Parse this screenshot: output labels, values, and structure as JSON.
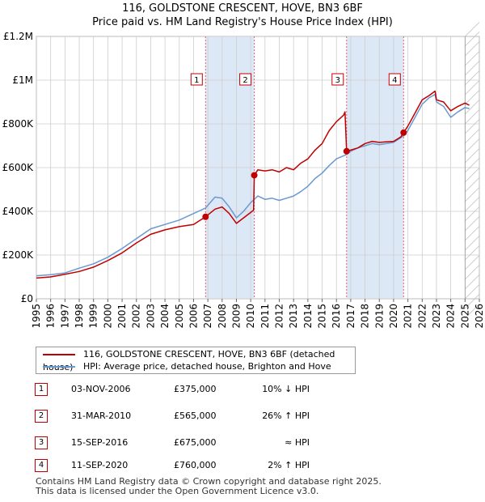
{
  "title": {
    "line1": "116, GOLDSTONE CRESCENT, HOVE, BN3 6BF",
    "line2": "Price paid vs. HM Land Registry's House Price Index (HPI)"
  },
  "legend": {
    "price_label": "116, GOLDSTONE CRESCENT, HOVE, BN3 6BF (detached house)",
    "hpi_label": "HPI: Average price, detached house, Brighton and Hove"
  },
  "sales": [
    {
      "num": "1",
      "date": "03-NOV-2006",
      "price": "£375,000",
      "hpi": "10% ↓ HPI"
    },
    {
      "num": "2",
      "date": "31-MAR-2010",
      "price": "£565,000",
      "hpi": "26% ↑ HPI"
    },
    {
      "num": "3",
      "date": "15-SEP-2016",
      "price": "£675,000",
      "hpi": "≈ HPI"
    },
    {
      "num": "4",
      "date": "11-SEP-2020",
      "price": "£760,000",
      "hpi": "2% ↑ HPI"
    }
  ],
  "footer": {
    "line1": "Contains HM Land Registry data © Crown copyright and database right 2025.",
    "line2": "This data is licensed under the Open Government Licence v3.0."
  },
  "colors": {
    "price_line": "#c00000",
    "hpi_line": "#6a99d0",
    "shade": "#dde8f7",
    "marker_line": "#e06070",
    "grid": "#cccccc"
  },
  "chart_data": {
    "type": "line",
    "title": "Price paid vs. HM Land Registry's House Price Index (HPI)",
    "xlim": [
      1995,
      2026
    ],
    "ylim": [
      0,
      1200000
    ],
    "x_ticks": [
      1995,
      1996,
      1997,
      1998,
      1999,
      2000,
      2001,
      2002,
      2003,
      2004,
      2005,
      2006,
      2007,
      2008,
      2009,
      2010,
      2011,
      2012,
      2013,
      2014,
      2015,
      2016,
      2017,
      2018,
      2019,
      2020,
      2021,
      2022,
      2023,
      2024,
      2025,
      2026
    ],
    "y_ticks": [
      {
        "value": 0,
        "label": "£0"
      },
      {
        "value": 200000,
        "label": "£200K"
      },
      {
        "value": 400000,
        "label": "£400K"
      },
      {
        "value": 600000,
        "label": "£600K"
      },
      {
        "value": 800000,
        "label": "£800K"
      },
      {
        "value": 1000000,
        "label": "£1M"
      },
      {
        "value": 1200000,
        "label": "£1.2M"
      }
    ],
    "shaded_ranges": [
      [
        2006.84,
        2010.25
      ],
      [
        2016.71,
        2020.7
      ]
    ],
    "hatch_from": 2025.0,
    "series": [
      {
        "name": "116, GOLDSTONE CRESCENT, HOVE, BN3 6BF (detached house)",
        "x": [
          1995.0,
          1996.0,
          1997.0,
          1998.0,
          1999.0,
          2000.0,
          2001.0,
          2002.0,
          2003.0,
          2004.0,
          2005.0,
          2006.0,
          2006.84,
          2007.5,
          2008.0,
          2008.5,
          2009.0,
          2009.5,
          2010.2,
          2010.25,
          2010.5,
          2011.0,
          2011.5,
          2012.0,
          2012.5,
          2013.0,
          2013.5,
          2014.0,
          2014.5,
          2015.0,
          2015.5,
          2016.0,
          2016.5,
          2016.6,
          2016.71,
          2017.0,
          2017.5,
          2018.0,
          2018.5,
          2019.0,
          2019.5,
          2020.0,
          2020.5,
          2020.7,
          2021.0,
          2021.5,
          2022.0,
          2022.5,
          2022.9,
          2023.0,
          2023.5,
          2024.0,
          2024.5,
          2025.0,
          2025.3
        ],
        "y": [
          95000,
          100000,
          112000,
          125000,
          145000,
          175000,
          210000,
          255000,
          295000,
          315000,
          330000,
          340000,
          375000,
          410000,
          420000,
          390000,
          345000,
          370000,
          405000,
          565000,
          590000,
          585000,
          590000,
          580000,
          600000,
          590000,
          620000,
          640000,
          680000,
          710000,
          770000,
          810000,
          840000,
          855000,
          675000,
          680000,
          690000,
          710000,
          720000,
          715000,
          718000,
          720000,
          740000,
          760000,
          790000,
          850000,
          910000,
          930000,
          950000,
          910000,
          900000,
          860000,
          880000,
          895000,
          885000
        ]
      },
      {
        "name": "HPI: Average price, detached house, Brighton and Hove",
        "x": [
          1995.0,
          1996.0,
          1997.0,
          1998.0,
          1999.0,
          2000.0,
          2001.0,
          2002.0,
          2003.0,
          2004.0,
          2005.0,
          2006.0,
          2006.84,
          2007.5,
          2008.0,
          2008.5,
          2009.0,
          2009.5,
          2010.0,
          2010.5,
          2011.0,
          2011.5,
          2012.0,
          2012.5,
          2013.0,
          2013.5,
          2014.0,
          2014.5,
          2015.0,
          2015.5,
          2016.0,
          2016.71,
          2017.0,
          2017.5,
          2018.0,
          2018.5,
          2019.0,
          2019.5,
          2020.0,
          2020.7,
          2021.0,
          2021.5,
          2022.0,
          2022.5,
          2022.9,
          2023.0,
          2023.5,
          2024.0,
          2024.5,
          2025.0,
          2025.3
        ],
        "y": [
          105000,
          110000,
          118000,
          140000,
          160000,
          190000,
          230000,
          275000,
          320000,
          340000,
          360000,
          390000,
          415000,
          465000,
          460000,
          420000,
          370000,
          400000,
          440000,
          470000,
          455000,
          460000,
          450000,
          460000,
          470000,
          490000,
          515000,
          550000,
          575000,
          610000,
          640000,
          660000,
          675000,
          690000,
          700000,
          710000,
          705000,
          710000,
          715000,
          745000,
          770000,
          830000,
          890000,
          920000,
          935000,
          900000,
          880000,
          830000,
          855000,
          875000,
          870000
        ]
      }
    ],
    "sale_markers": [
      {
        "label": "1",
        "x": 2006.84,
        "y": 375000
      },
      {
        "label": "2",
        "x": 2010.25,
        "y": 565000
      },
      {
        "label": "3",
        "x": 2016.71,
        "y": 675000
      },
      {
        "label": "4",
        "x": 2020.7,
        "y": 760000
      }
    ]
  }
}
